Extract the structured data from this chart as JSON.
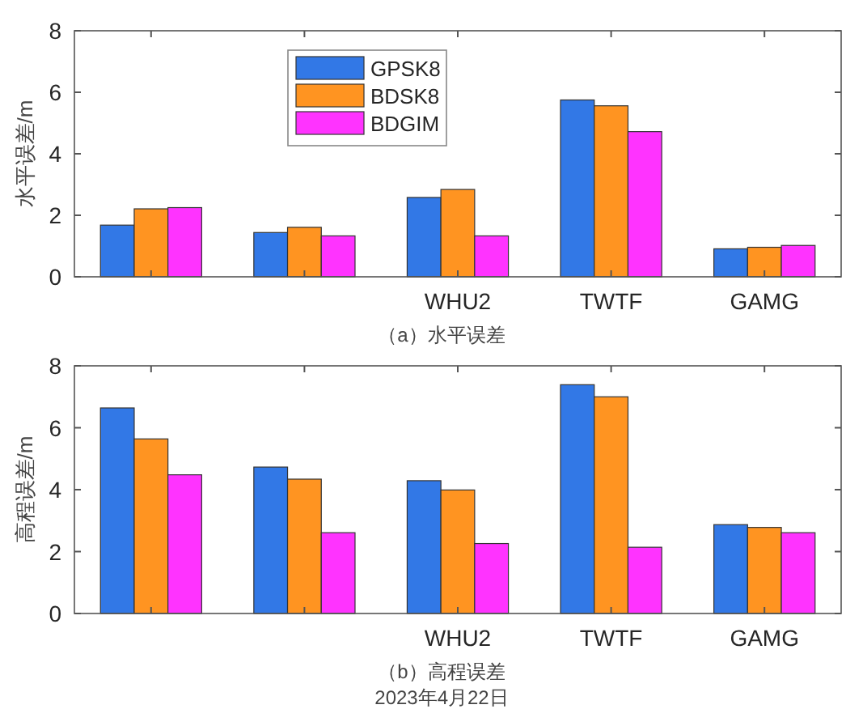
{
  "chart_data": [
    {
      "type": "bar",
      "categories": [
        null,
        null,
        "WHU2",
        "TWTF",
        "GAMG"
      ],
      "ylabel": "水平误差/m",
      "xlabel": "（a）水平误差",
      "ylim": [
        0,
        8
      ],
      "yticks": [
        0,
        2,
        4,
        6,
        8
      ],
      "legend": "top left",
      "grid": false,
      "series": [
        {
          "name": "GPSK8",
          "color": "#3278e6",
          "values": [
            1.68,
            1.44,
            2.58,
            5.75,
            0.91
          ]
        },
        {
          "name": "BDSK8",
          "color": "#ff9421",
          "values": [
            2.21,
            1.61,
            2.84,
            5.56,
            0.96
          ]
        },
        {
          "name": "BDGIM",
          "color": "#ff33ff",
          "values": [
            2.25,
            1.33,
            1.33,
            4.72,
            1.02
          ]
        }
      ]
    },
    {
      "type": "bar",
      "categories": [
        null,
        null,
        "WHU2",
        "TWTF",
        "GAMG"
      ],
      "ylabel": "高程误差/m",
      "xlabel": "（b）高程误差",
      "ylim": [
        0,
        8
      ],
      "yticks": [
        0,
        2,
        4,
        6,
        8
      ],
      "legend": false,
      "grid": false,
      "annotations": [
        "2023年4月22日"
      ],
      "series": [
        {
          "color": "#3278e6",
          "values": [
            6.64,
            4.73,
            4.29,
            7.39,
            2.87
          ]
        },
        {
          "color": "#ff9421",
          "values": [
            5.64,
            4.34,
            3.99,
            7.0,
            2.78
          ]
        },
        {
          "color": "#ff33ff",
          "values": [
            4.48,
            2.61,
            2.26,
            2.14,
            2.61
          ]
        }
      ]
    }
  ]
}
